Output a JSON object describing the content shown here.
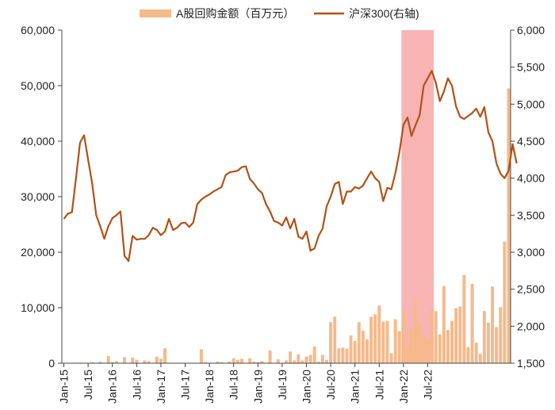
{
  "chart_data": {
    "type": "bar+line",
    "legend": [
      {
        "label": "A股回购金额（百万元）",
        "color": "#F6B98A",
        "kind": "bar"
      },
      {
        "label": "沪深300(右轴)",
        "color": "#B25117",
        "kind": "line"
      }
    ],
    "x_tick_labels": [
      "Jan-15",
      "Jul-15",
      "Jan-16",
      "Jul-16",
      "Jan-17",
      "Jul-17",
      "Jan-18",
      "Jul-18",
      "Jan-19",
      "Jul-19",
      "Jan-20",
      "Jul-20",
      "Jan-21",
      "Jul-21",
      "Jan-22",
      "Jul-22"
    ],
    "left_axis": {
      "min": 0,
      "max": 60000,
      "ticks": [
        "0",
        "10,000",
        "20,000",
        "30,000",
        "40,000",
        "50,000",
        "60,000"
      ]
    },
    "right_axis": {
      "min": 1500,
      "max": 6000,
      "ticks": [
        "1,500",
        "2,000",
        "2,500",
        "3,000",
        "3,500",
        "4,000",
        "4,500",
        "5,000",
        "5,500",
        "6,000"
      ]
    },
    "highlight": {
      "from_index": 84,
      "to_index": 91,
      "color": "#F7A6A6"
    },
    "bar_values": [
      0,
      0,
      0,
      0,
      0,
      0,
      50,
      150,
      0,
      250,
      0,
      1300,
      200,
      400,
      0,
      1100,
      0,
      1000,
      600,
      0,
      500,
      400,
      0,
      1200,
      800,
      2700,
      0,
      0,
      0,
      0,
      0,
      0,
      0,
      0,
      2500,
      200,
      0,
      0,
      300,
      200,
      0,
      300,
      900,
      600,
      800,
      0,
      900,
      300,
      200,
      400,
      0,
      2300,
      0,
      700,
      0,
      500,
      2100,
      500,
      1600,
      500,
      1200,
      1500,
      3000,
      300,
      1500,
      600,
      7400,
      8400,
      2700,
      2800,
      2600,
      5000,
      4000,
      7400,
      5900,
      4300,
      8400,
      8800,
      10400,
      7500,
      7600,
      1800,
      7900,
      5800,
      9500,
      2800,
      6100,
      11300,
      7300,
      5000,
      4200,
      9800,
      9400,
      5200,
      13900,
      6000,
      7600,
      9900,
      10200,
      15900,
      2900,
      14300,
      3700,
      1700,
      9400,
      7300,
      13800,
      6500,
      10100,
      21900,
      49500
    ],
    "hs300_values": [
      3450,
      3520,
      3540,
      4000,
      4480,
      4580,
      4250,
      3930,
      3500,
      3350,
      3180,
      3350,
      3460,
      3500,
      3550,
      2950,
      2880,
      3220,
      3170,
      3180,
      3180,
      3230,
      3330,
      3300,
      3230,
      3280,
      3450,
      3300,
      3330,
      3390,
      3400,
      3340,
      3400,
      3650,
      3710,
      3750,
      3780,
      3820,
      3850,
      3880,
      4040,
      4080,
      4090,
      4100,
      4150,
      4160,
      3990,
      3930,
      3850,
      3800,
      3650,
      3550,
      3420,
      3400,
      3360,
      3470,
      3320,
      3450,
      3210,
      3180,
      3280,
      3020,
      3050,
      3220,
      3320,
      3620,
      3750,
      3920,
      3950,
      3650,
      3820,
      3820,
      3880,
      3860,
      3900,
      4000,
      4090,
      4000,
      3950,
      3690,
      3870,
      3850,
      4070,
      4350,
      4720,
      4820,
      4570,
      4720,
      4850,
      5250,
      5350,
      5450,
      5290,
      5040,
      5170,
      5350,
      5250,
      4970,
      4830,
      4800,
      4840,
      4880,
      4940,
      4830,
      4960,
      4620,
      4500,
      4200,
      4060,
      4000,
      4100,
      4460,
      4200
    ]
  }
}
